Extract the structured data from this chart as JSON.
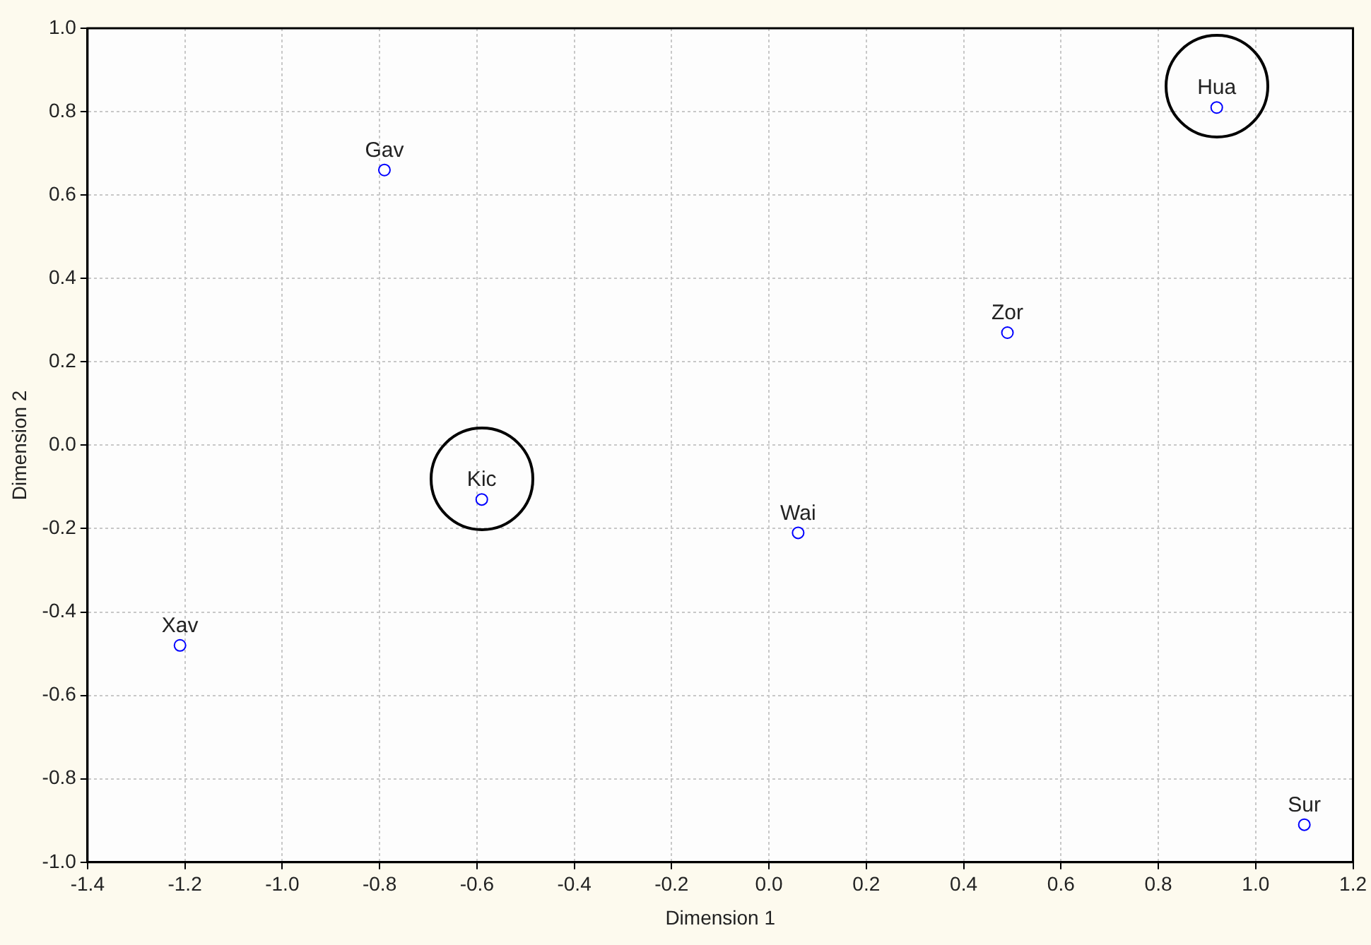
{
  "chart_data": {
    "type": "scatter",
    "xlabel": "Dimension 1",
    "ylabel": "Dimension 2",
    "series": [
      {
        "color": "#0000ff",
        "x": [
          -0.79,
          0.92,
          0.49,
          -0.59,
          0.06,
          -1.21,
          1.1
        ],
        "values": [
          0.66,
          0.81,
          0.27,
          -0.13,
          -0.21,
          -0.48,
          -0.91
        ]
      }
    ],
    "annotations": [
      {
        "text": "Gav",
        "x": -0.79,
        "y": 0.66
      },
      {
        "text": "Hua",
        "x": 0.92,
        "y": 0.81
      },
      {
        "text": "Zor",
        "x": 0.49,
        "y": 0.27
      },
      {
        "text": "Kic",
        "x": -0.59,
        "y": -0.13
      },
      {
        "text": "Wai",
        "x": 0.06,
        "y": -0.21
      },
      {
        "text": "Xav",
        "x": -1.21,
        "y": -0.48
      },
      {
        "text": "Sur",
        "x": 1.1,
        "y": -0.91
      }
    ],
    "xlim": [
      -1.4,
      1.2
    ],
    "xticks": [
      -1.4,
      -1.2,
      {
        "value": -1,
        "label": "-1.0"
      },
      -0.8,
      -0.6,
      -0.4,
      -0.2,
      {
        "value": 0,
        "label": "0.0"
      },
      0.2,
      0.4,
      0.6,
      0.8,
      {
        "value": 1,
        "label": "1.0"
      },
      1.2
    ],
    "ylim": [
      -1.0,
      1.0
    ],
    "yticks": [
      {
        "value": -1,
        "label": "-1.0"
      },
      -0.8,
      -0.6,
      -0.4,
      -0.2,
      {
        "value": 0,
        "label": "0.0"
      },
      0.2,
      0.4,
      0.6,
      0.8,
      {
        "value": 1,
        "label": "1.0"
      }
    ],
    "grid": true,
    "legend": false,
    "marker": "circle"
  }
}
